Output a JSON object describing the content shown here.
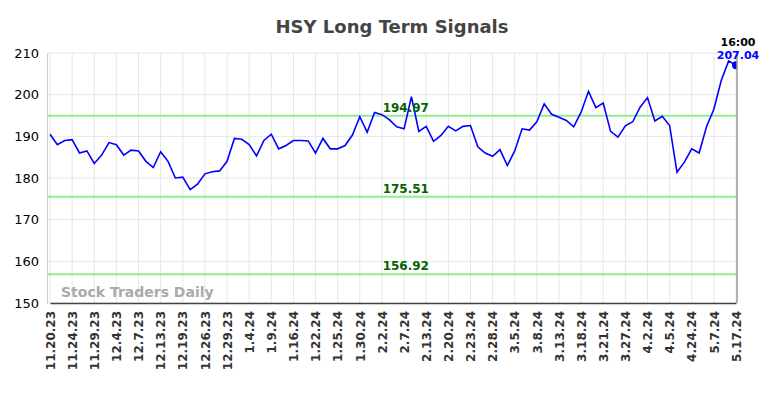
{
  "chart_data": {
    "type": "line",
    "title": "HSY Long Term Signals",
    "watermark": "Stock Traders Daily",
    "annotations": [
      "16:00"
    ],
    "categories": [
      "11.20.23",
      null,
      null,
      "11.24.23",
      null,
      null,
      "11.29.23",
      null,
      null,
      "12.4.23",
      null,
      null,
      "12.7.23",
      null,
      null,
      "12.13.23",
      null,
      null,
      "12.19.23",
      null,
      null,
      "12.26.23",
      null,
      null,
      "12.29.23",
      null,
      null,
      "1.4.24",
      null,
      null,
      "1.9.24",
      null,
      null,
      "1.16.24",
      null,
      null,
      "1.22.24",
      null,
      null,
      "1.25.24",
      null,
      null,
      "1.30.24",
      null,
      null,
      "2.2.24",
      null,
      null,
      "2.7.24",
      null,
      null,
      "2.13.24",
      null,
      null,
      "2.20.24",
      null,
      null,
      "2.23.24",
      null,
      null,
      "2.28.24",
      null,
      null,
      "3.5.24",
      null,
      null,
      "3.8.24",
      null,
      null,
      "3.13.24",
      null,
      null,
      "3.18.24",
      null,
      null,
      "3.21.24",
      null,
      null,
      "3.27.24",
      null,
      null,
      "4.2.24",
      null,
      null,
      "4.5.24",
      null,
      null,
      "4.24.24",
      null,
      null,
      "5.7.24",
      null,
      null,
      "5.17.24"
    ],
    "values": [
      190.5,
      188,
      189,
      189.2,
      186,
      186.5,
      183.5,
      185.5,
      188.5,
      188,
      185.5,
      186.7,
      186.5,
      184,
      182.5,
      186.3,
      184,
      180,
      180.2,
      177.2,
      178.5,
      181,
      181.5,
      181.7,
      184,
      189.5,
      189.3,
      188,
      185.3,
      189,
      190.5,
      187,
      187.8,
      189,
      189,
      188.9,
      186,
      189.5,
      187,
      187,
      187.8,
      190.3,
      194.7,
      191,
      195.7,
      195.2,
      194,
      192.3,
      191.8,
      199.5,
      191.2,
      192.4,
      188.8,
      190.2,
      192.4,
      191.3,
      192.4,
      192.6,
      187.5,
      186,
      185.2,
      186.8,
      183,
      186.5,
      191.8,
      191.5,
      193.5,
      197.8,
      195.3,
      194.6,
      193.8,
      192.3,
      195.8,
      200.8,
      196.9,
      198,
      191.2,
      189.8,
      192.5,
      193.5,
      197,
      199.3,
      193.7,
      194.8,
      192.6,
      181.4,
      183.8,
      187,
      186,
      192.3,
      196.5,
      203.4,
      208.1,
      207.04
    ],
    "color": "#0000ff",
    "levels": {
      "values": [
        194.97,
        175.51,
        156.92
      ],
      "color": "#90ee90"
    },
    "ylim": [
      150,
      210
    ],
    "yticks": [
      150,
      160,
      170,
      180,
      190,
      200,
      210
    ],
    "grid": true
  }
}
